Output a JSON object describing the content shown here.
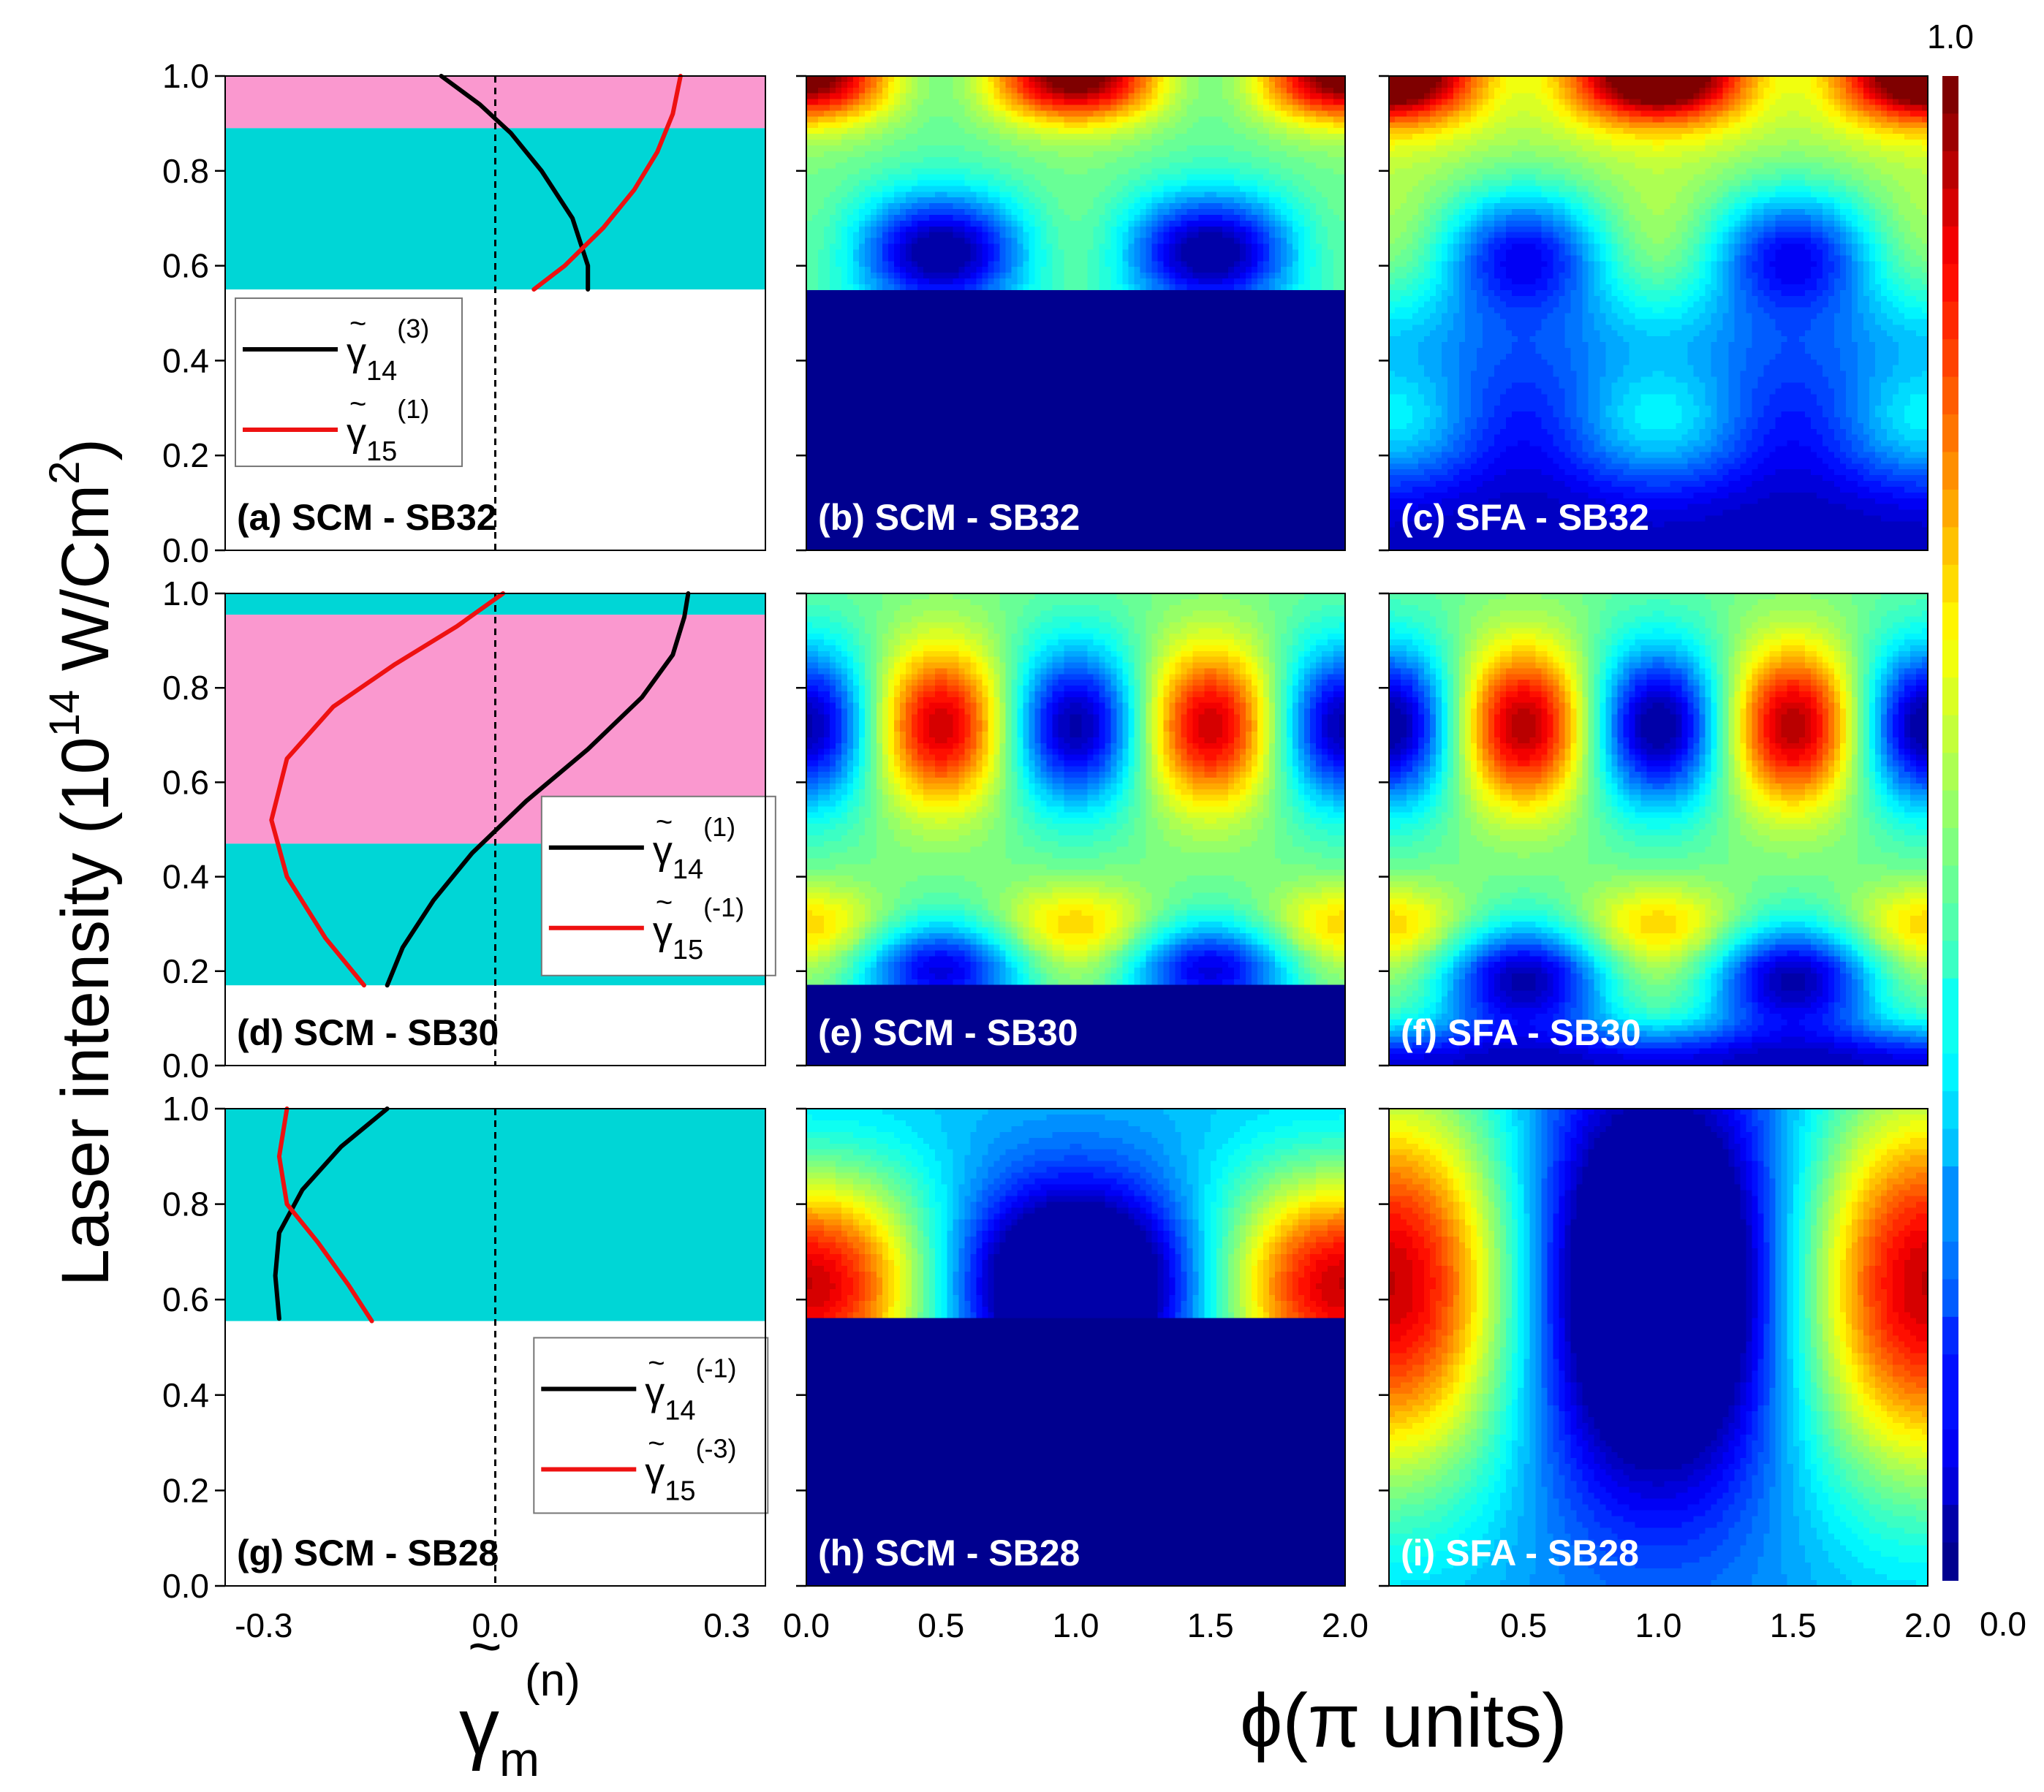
{
  "figure": {
    "ylabel_main": "Laser intensity (10",
    "ylabel_exp": "14",
    "ylabel_unit": " W/Cm",
    "ylabel_unit_exp": "2",
    "ylabel_close": ")",
    "xlabel_left_base": "γ",
    "xlabel_left_tilde": "~",
    "xlabel_left_sub": "m",
    "xlabel_left_sup": "(n)",
    "xlabel_right": "ϕ(π units)",
    "colorbar_max": "1.0",
    "colorbar_min": "0.0"
  },
  "colors": {
    "pink": "#fa98cf",
    "cyan": "#00d6d6",
    "black_curve": "#000000",
    "red_curve": "#ee1111",
    "jet": [
      "#00008f",
      "#0000ff",
      "#00ffff",
      "#7fff7f",
      "#ffff00",
      "#ff0000",
      "#7f0000"
    ]
  },
  "chart_data": [
    {
      "type": "line",
      "panel": "a",
      "label": "(a) SCM - SB32",
      "xlim": [
        -0.35,
        0.35
      ],
      "ylim": [
        0,
        1
      ],
      "xticks": [
        "-0.3",
        "0.0",
        "0.3"
      ],
      "yticks": [
        "0.0",
        "0.2",
        "0.4",
        "0.6",
        "0.8",
        "1.0"
      ],
      "bands": [
        {
          "color": "pink",
          "y": [
            0.89,
            1.0
          ]
        },
        {
          "color": "cyan",
          "y": [
            0.55,
            0.89
          ]
        }
      ],
      "series": [
        {
          "name_base": "γ",
          "name_sub": "14",
          "name_sup": "(3)",
          "color": "black",
          "x": [
            -0.07,
            -0.02,
            0.02,
            0.06,
            0.1,
            0.12,
            0.12
          ],
          "y": [
            1.0,
            0.94,
            0.88,
            0.8,
            0.7,
            0.6,
            0.55
          ]
        },
        {
          "name_base": "γ",
          "name_sub": "15",
          "name_sup": "(1)",
          "color": "red",
          "x": [
            0.24,
            0.23,
            0.21,
            0.18,
            0.14,
            0.09,
            0.05
          ],
          "y": [
            1.0,
            0.92,
            0.84,
            0.76,
            0.68,
            0.6,
            0.55
          ]
        }
      ]
    },
    {
      "type": "line",
      "panel": "d",
      "label": "(d) SCM - SB30",
      "xlim": [
        -0.35,
        0.35
      ],
      "ylim": [
        0,
        1
      ],
      "xticks": [
        "-0.3",
        "0.0",
        "0.3"
      ],
      "yticks": [
        "0.0",
        "0.2",
        "0.4",
        "0.6",
        "0.8",
        "1.0"
      ],
      "bands": [
        {
          "color": "cyan",
          "y": [
            0.955,
            1.0
          ]
        },
        {
          "color": "pink",
          "y": [
            0.47,
            0.955
          ]
        },
        {
          "color": "cyan",
          "y": [
            0.17,
            0.47
          ]
        }
      ],
      "series": [
        {
          "name_base": "γ",
          "name_sub": "14",
          "name_sup": "(1)",
          "color": "black",
          "x": [
            0.25,
            0.245,
            0.23,
            0.19,
            0.12,
            0.04,
            -0.03,
            -0.08,
            -0.12,
            -0.14
          ],
          "y": [
            1.0,
            0.95,
            0.87,
            0.78,
            0.67,
            0.56,
            0.45,
            0.35,
            0.25,
            0.17
          ]
        },
        {
          "name_base": "γ",
          "name_sub": "15",
          "name_sup": "(-1)",
          "color": "red",
          "x": [
            0.01,
            -0.05,
            -0.13,
            -0.21,
            -0.27,
            -0.29,
            -0.27,
            -0.22,
            -0.17
          ],
          "y": [
            1.0,
            0.93,
            0.85,
            0.76,
            0.65,
            0.52,
            0.4,
            0.27,
            0.17
          ]
        }
      ]
    },
    {
      "type": "line",
      "panel": "g",
      "label": "(g) SCM - SB28",
      "xlim": [
        -0.35,
        0.35
      ],
      "ylim": [
        0,
        1
      ],
      "xticks": [
        "-0.3",
        "0.0",
        "0.3"
      ],
      "yticks": [
        "0.0",
        "0.2",
        "0.4",
        "0.6",
        "0.8",
        "1.0"
      ],
      "bands": [
        {
          "color": "cyan",
          "y": [
            0.555,
            1.0
          ]
        }
      ],
      "series": [
        {
          "name_base": "γ",
          "name_sub": "14",
          "name_sup": "(-1)",
          "color": "black",
          "x": [
            -0.14,
            -0.2,
            -0.25,
            -0.28,
            -0.285,
            -0.28
          ],
          "y": [
            1.0,
            0.92,
            0.83,
            0.74,
            0.65,
            0.56
          ]
        },
        {
          "name_base": "γ",
          "name_sub": "15",
          "name_sup": "(-3)",
          "color": "red",
          "x": [
            -0.27,
            -0.28,
            -0.27,
            -0.23,
            -0.19,
            -0.16
          ],
          "y": [
            1.0,
            0.9,
            0.8,
            0.72,
            0.63,
            0.555
          ]
        }
      ]
    },
    {
      "type": "heatmap",
      "panel": "b",
      "label": "(b) SCM - SB32",
      "model": "scm32",
      "x_range": [
        0,
        2
      ],
      "ylim": [
        0,
        1
      ],
      "yticks": [
        "0.0",
        "0.2",
        "0.4",
        "0.6",
        "0.8",
        "1.0"
      ],
      "zlim": [
        0,
        1
      ]
    },
    {
      "type": "heatmap",
      "panel": "c",
      "label": "(c) SFA - SB32",
      "model": "sfa32",
      "x_range": [
        0,
        2
      ],
      "ylim": [
        0,
        1
      ],
      "yticks": [
        "0.0",
        "0.2",
        "0.4",
        "0.6",
        "0.8",
        "1.0"
      ],
      "zlim": [
        0,
        1
      ]
    },
    {
      "type": "heatmap",
      "panel": "e",
      "label": "(e) SCM - SB30",
      "model": "scm30",
      "x_range": [
        0,
        2
      ],
      "ylim": [
        0,
        1
      ],
      "yticks": [
        "0.0",
        "0.2",
        "0.4",
        "0.6",
        "0.8",
        "1.0"
      ],
      "zlim": [
        0,
        1
      ]
    },
    {
      "type": "heatmap",
      "panel": "f",
      "label": "(f) SFA - SB30",
      "model": "sfa30",
      "x_range": [
        0,
        2
      ],
      "ylim": [
        0,
        1
      ],
      "yticks": [
        "0.0",
        "0.2",
        "0.4",
        "0.6",
        "0.8",
        "1.0"
      ],
      "zlim": [
        0,
        1
      ]
    },
    {
      "type": "heatmap",
      "panel": "h",
      "label": "(h) SCM - SB28",
      "model": "scm28",
      "x_range": [
        0,
        2
      ],
      "ylim": [
        0,
        1
      ],
      "yticks": [
        "0.0",
        "0.2",
        "0.4",
        "0.6",
        "0.8",
        "1.0"
      ],
      "xticks": [
        "0.0",
        "0.5",
        "1.0",
        "1.5",
        "2.0"
      ],
      "zlim": [
        0,
        1
      ]
    },
    {
      "type": "heatmap",
      "panel": "i",
      "label": "(i) SFA - SB28",
      "model": "sfa28",
      "x_range": [
        0,
        2
      ],
      "ylim": [
        0,
        1
      ],
      "yticks": [
        "0.0",
        "0.2",
        "0.4",
        "0.6",
        "0.8",
        "1.0"
      ],
      "xticks": [
        "0.5",
        "1.0",
        "1.5",
        "2.0"
      ],
      "zlim": [
        0,
        1
      ]
    }
  ]
}
